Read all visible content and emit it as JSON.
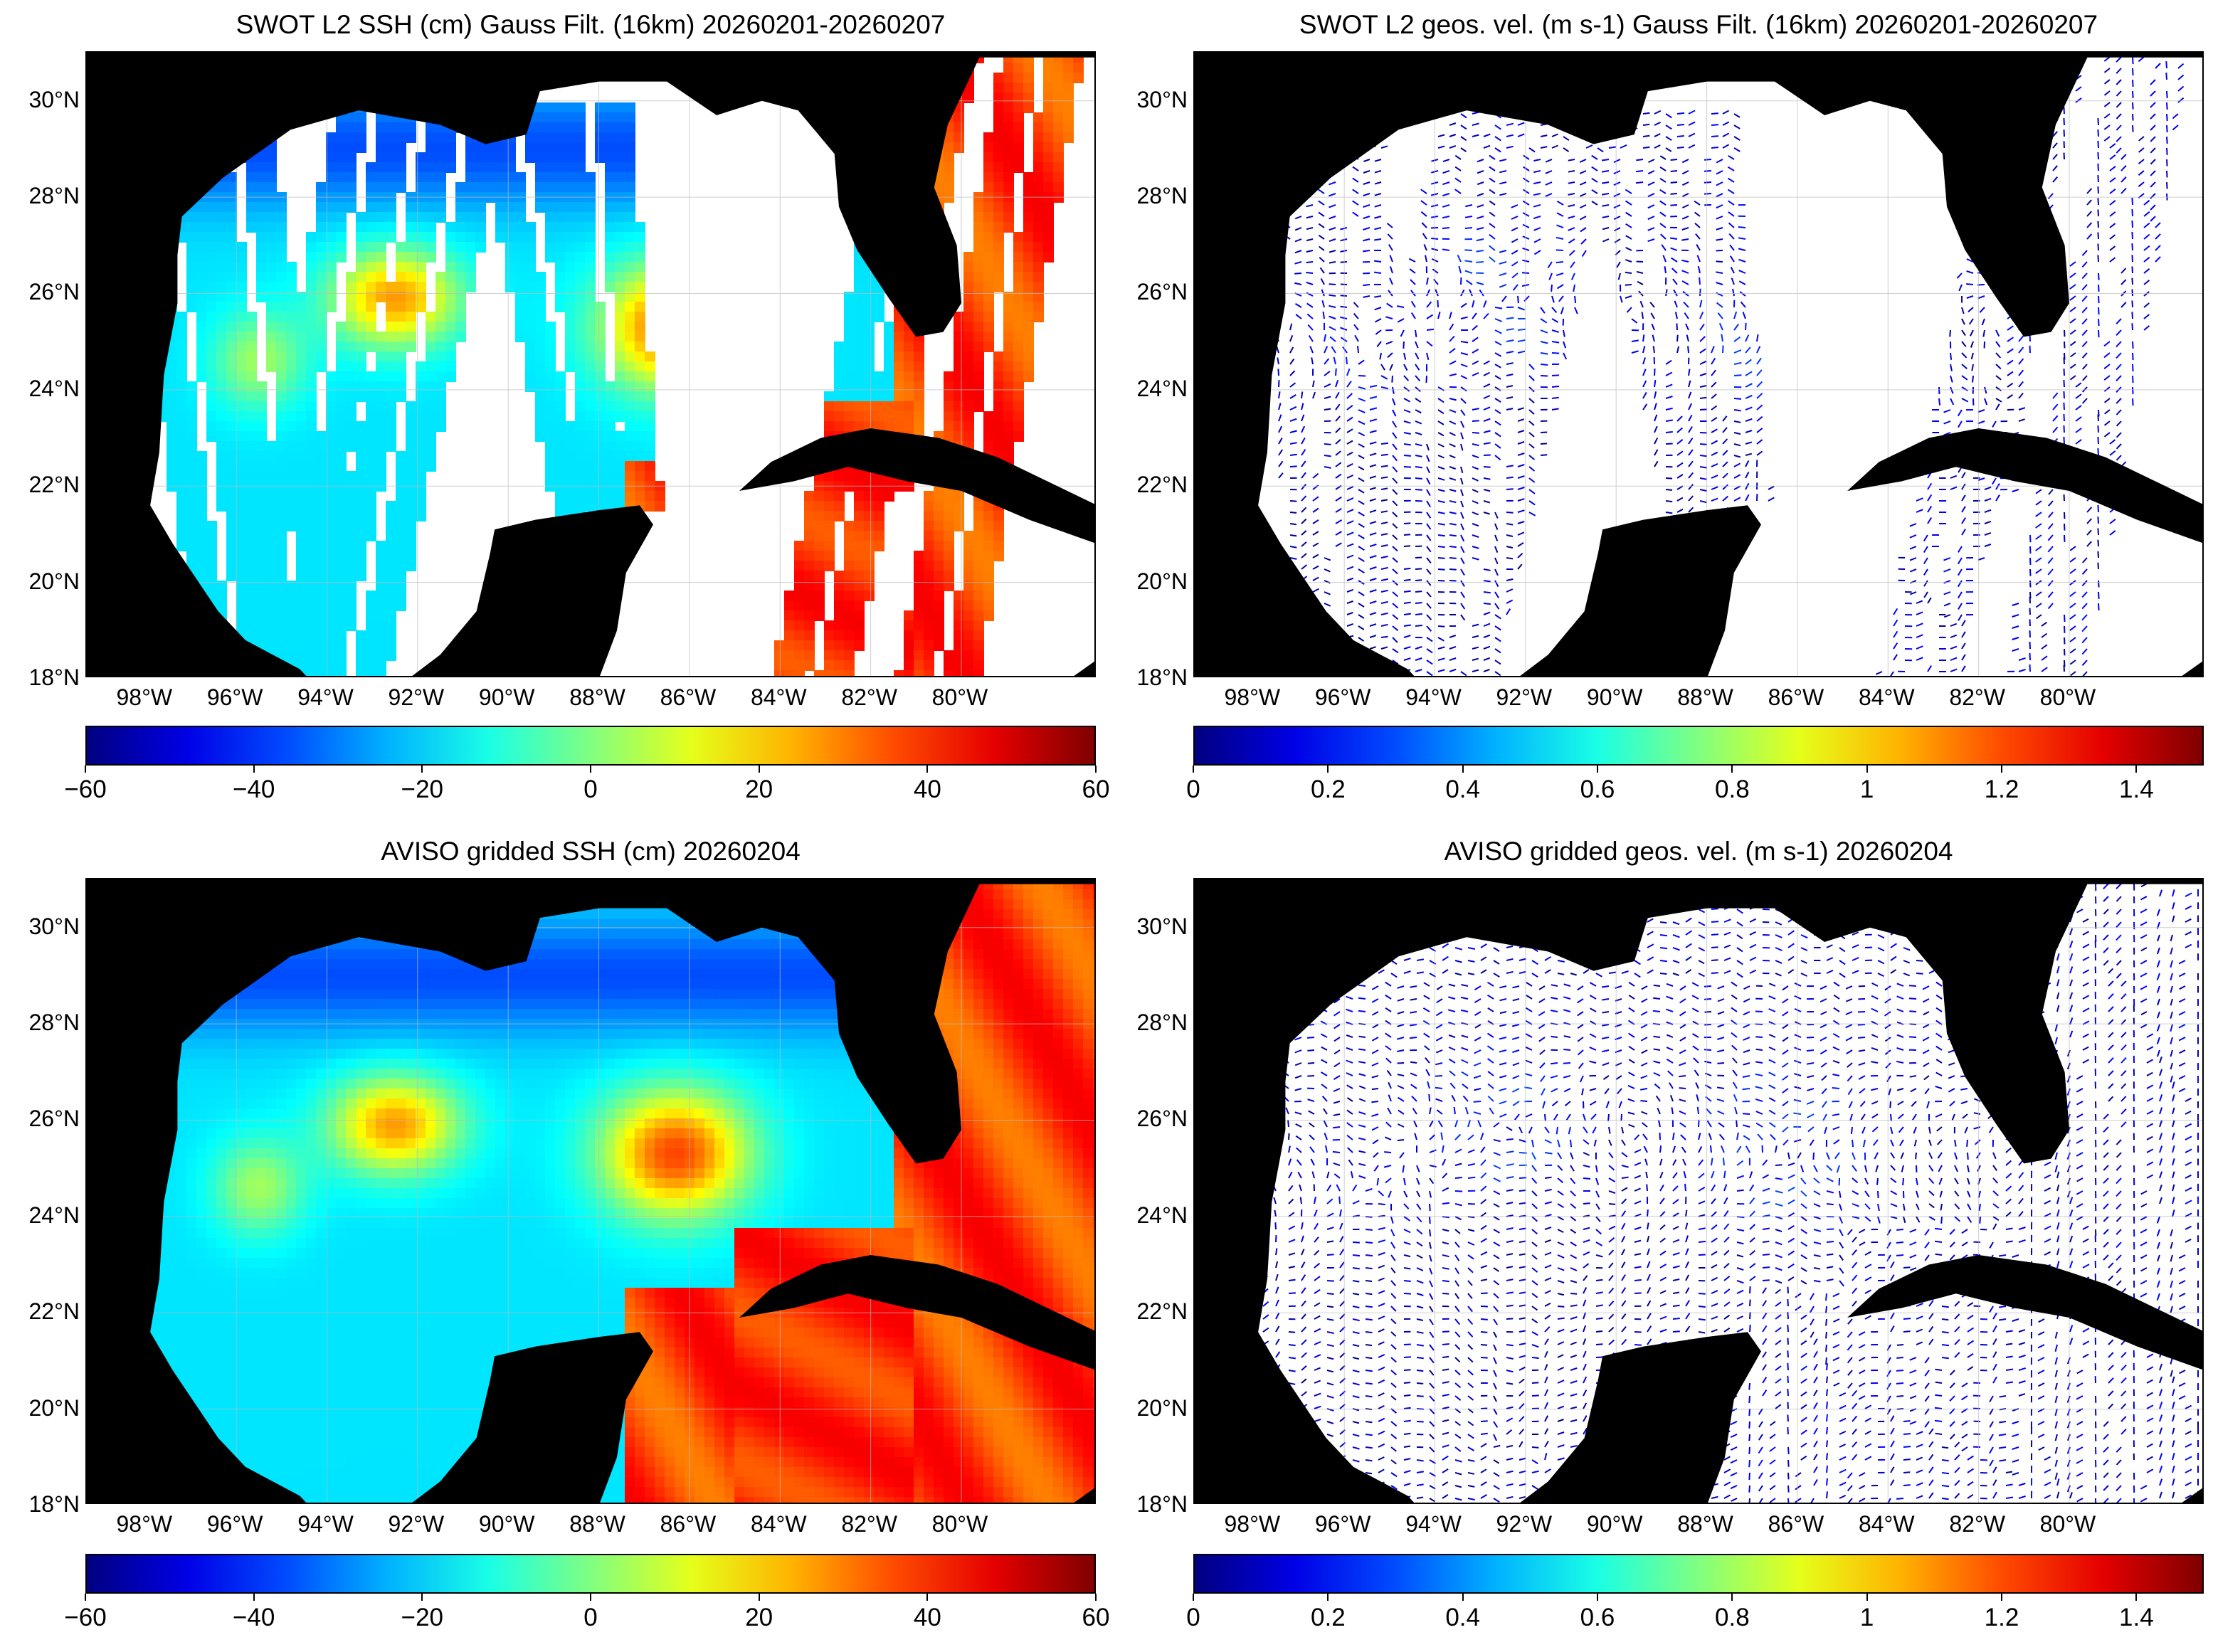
{
  "lat_labels": [
    "30°N",
    "28°N",
    "26°N",
    "24°N",
    "22°N",
    "20°N",
    "18°N"
  ],
  "lon_labels": [
    "98°W",
    "96°W",
    "94°W",
    "92°W",
    "90°W",
    "88°W",
    "86°W",
    "84°W",
    "82°W",
    "80°W"
  ],
  "panels": [
    {
      "title": "SWOT L2 SSH (cm) Gauss Filt. (16km) 20260201-20260207",
      "variable": "ssh",
      "coverage": "swaths",
      "colormap": "jet",
      "colorbar": {
        "range": [
          -60,
          60
        ],
        "ticks": [
          "-60",
          "-40",
          "-20",
          "0",
          "20",
          "40",
          "60"
        ]
      }
    },
    {
      "title": "SWOT L2 geos. vel. (m s-1) Gauss Filt. (16km) 20260201-20260207",
      "variable": "velocity",
      "coverage": "swaths",
      "colormap": "jet",
      "colorbar": {
        "range": [
          0,
          1.5
        ],
        "ticks": [
          "0",
          "0.2",
          "0.4",
          "0.6",
          "0.8",
          "1",
          "1.2",
          "1.4"
        ]
      }
    },
    {
      "title": "AVISO gridded SSH (cm) 20260204",
      "variable": "ssh",
      "coverage": "full",
      "colormap": "jet",
      "colorbar": {
        "range": [
          -60,
          60
        ],
        "ticks": [
          "-60",
          "-40",
          "-20",
          "0",
          "20",
          "40",
          "60"
        ]
      }
    },
    {
      "title": "AVISO gridded geos. vel. (m s-1)  20260204",
      "variable": "velocity",
      "coverage": "full",
      "colormap": "jet",
      "colorbar": {
        "range": [
          0,
          1.5
        ],
        "ticks": [
          "0",
          "0.2",
          "0.4",
          "0.6",
          "0.8",
          "1",
          "1.2",
          "1.4"
        ]
      }
    }
  ]
}
